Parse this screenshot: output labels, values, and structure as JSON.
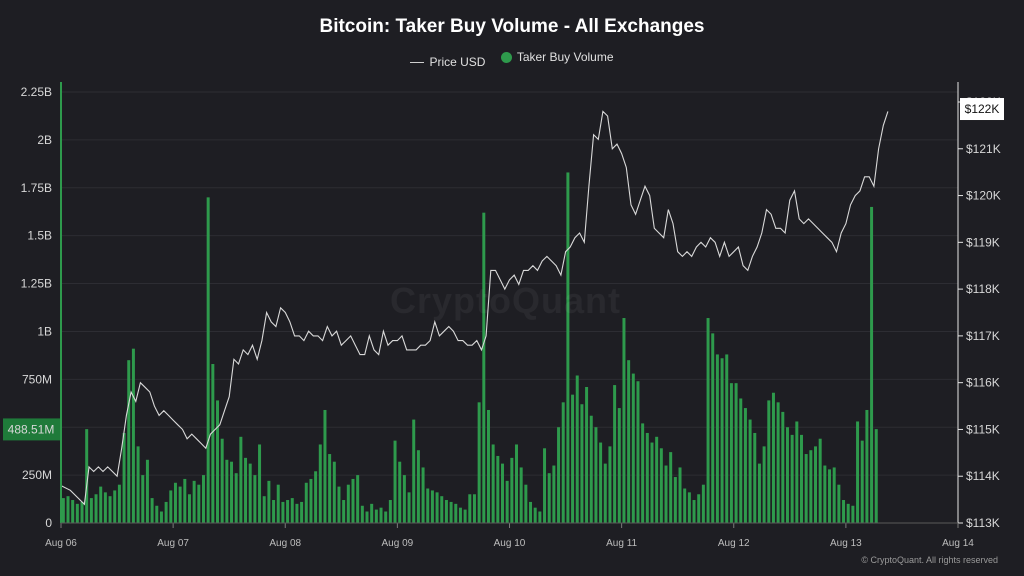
{
  "title": "Bitcoin: Taker Buy Volume - All Exchanges",
  "legend": {
    "price_label": "Price USD",
    "volume_label": "Taker Buy Volume"
  },
  "watermark": "CryptoQuant",
  "copyright": "© CryptoQuant. All rights reserved",
  "colors": {
    "background": "#1e1e23",
    "bar": "#2e9a4c",
    "bar_highlight": "#3cb35b",
    "price_line": "#d9d9d9",
    "left_axis": "#2e9a4c",
    "right_axis": "#e6e6e6"
  },
  "chart_data": {
    "type": "bar",
    "title": "Bitcoin: Taker Buy Volume - All Exchanges",
    "x_ticks": [
      "Aug 06",
      "Aug 07",
      "Aug 08",
      "Aug 09",
      "Aug 10",
      "Aug 11",
      "Aug 12",
      "Aug 13",
      "Aug 14"
    ],
    "y_left": {
      "ticks": [
        "0",
        "250M",
        "500M",
        "750M",
        "1B",
        "1.25B",
        "1.5B",
        "1.75B",
        "2B",
        "2.25B"
      ],
      "range": [
        0,
        2250000000
      ],
      "current_label": "488.51M",
      "current_value": 488510000
    },
    "y_right": {
      "ticks": [
        "$113K",
        "$114K",
        "$115K",
        "$116K",
        "$117K",
        "$118K",
        "$119K",
        "$120K",
        "$121K",
        "$122K"
      ],
      "range": [
        113000,
        122000
      ],
      "current_label": "$122K",
      "current_value": 121850
    },
    "x_range_hours": [
      0,
      192
    ],
    "series": [
      {
        "name": "Taker Buy Volume",
        "kind": "bar",
        "hour_start": 0,
        "hour_step": 1,
        "values": [
          130,
          140,
          120,
          100,
          110,
          490,
          130,
          150,
          190,
          160,
          140,
          170,
          200,
          470,
          850,
          910,
          400,
          250,
          330,
          130,
          90,
          60,
          110,
          170,
          210,
          190,
          230,
          150,
          220,
          200,
          250,
          1700,
          830,
          640,
          440,
          330,
          320,
          260,
          450,
          340,
          310,
          250,
          410,
          140,
          220,
          120,
          200,
          110,
          120,
          130,
          100,
          110,
          210,
          230,
          270,
          410,
          590,
          360,
          320,
          190,
          120,
          200,
          230,
          250,
          90,
          60,
          100,
          70,
          80,
          60,
          120,
          430,
          320,
          250,
          160,
          540,
          380,
          290,
          180,
          170,
          160,
          140,
          120,
          110,
          100,
          80,
          70,
          150,
          150,
          630,
          1620,
          590,
          410,
          350,
          310,
          220,
          340,
          410,
          290,
          200,
          110,
          80,
          60,
          390,
          260,
          300,
          500,
          630,
          1830,
          670,
          770,
          620,
          710,
          560,
          500,
          420,
          310,
          400,
          720,
          600,
          1070,
          850,
          780,
          740,
          520,
          470,
          420,
          450,
          390,
          300,
          370,
          240,
          290,
          180,
          160,
          120,
          150,
          200,
          1070,
          990,
          880,
          860,
          880,
          730,
          730,
          650,
          600,
          540,
          470,
          310,
          400,
          640,
          680,
          630,
          580,
          500,
          460,
          530,
          460,
          360,
          380,
          400,
          440,
          300,
          280,
          290,
          200,
          120,
          100,
          90,
          530,
          430,
          590,
          1650,
          490
        ],
        "unit": "millions"
      },
      {
        "name": "Price USD",
        "kind": "line",
        "points": [
          [
            0,
            113800
          ],
          [
            2,
            113700
          ],
          [
            4,
            113500
          ],
          [
            5,
            113400
          ],
          [
            6,
            114200
          ],
          [
            7,
            114100
          ],
          [
            8,
            114200
          ],
          [
            9,
            114100
          ],
          [
            10,
            114200
          ],
          [
            11,
            114100
          ],
          [
            12,
            114000
          ],
          [
            13,
            114600
          ],
          [
            14,
            115300
          ],
          [
            15,
            115800
          ],
          [
            16,
            115600
          ],
          [
            17,
            116000
          ],
          [
            18,
            115900
          ],
          [
            19,
            115800
          ],
          [
            20,
            115500
          ],
          [
            21,
            115300
          ],
          [
            22,
            115400
          ],
          [
            23,
            115300
          ],
          [
            24,
            115200
          ],
          [
            25,
            115100
          ],
          [
            26,
            115000
          ],
          [
            27,
            114800
          ],
          [
            28,
            114900
          ],
          [
            29,
            114800
          ],
          [
            30,
            114700
          ],
          [
            31,
            114600
          ],
          [
            32,
            114900
          ],
          [
            33,
            115000
          ],
          [
            34,
            115100
          ],
          [
            35,
            115400
          ],
          [
            36,
            115700
          ],
          [
            37,
            116500
          ],
          [
            38,
            116400
          ],
          [
            39,
            116700
          ],
          [
            40,
            116600
          ],
          [
            41,
            116800
          ],
          [
            42,
            116500
          ],
          [
            43,
            116900
          ],
          [
            44,
            117500
          ],
          [
            45,
            117300
          ],
          [
            46,
            117200
          ],
          [
            47,
            117600
          ],
          [
            48,
            117500
          ],
          [
            49,
            117300
          ],
          [
            50,
            117000
          ],
          [
            51,
            117000
          ],
          [
            52,
            116900
          ],
          [
            53,
            117100
          ],
          [
            54,
            117000
          ],
          [
            55,
            117000
          ],
          [
            56,
            116900
          ],
          [
            57,
            117200
          ],
          [
            58,
            117000
          ],
          [
            59,
            117100
          ],
          [
            60,
            116800
          ],
          [
            61,
            116900
          ],
          [
            62,
            117000
          ],
          [
            63,
            116800
          ],
          [
            64,
            116600
          ],
          [
            65,
            116600
          ],
          [
            66,
            117000
          ],
          [
            67,
            116700
          ],
          [
            68,
            116600
          ],
          [
            69,
            117100
          ],
          [
            70,
            116800
          ],
          [
            71,
            116900
          ],
          [
            72,
            116900
          ],
          [
            73,
            117000
          ],
          [
            74,
            116700
          ],
          [
            75,
            116700
          ],
          [
            76,
            116700
          ],
          [
            77,
            116800
          ],
          [
            78,
            116800
          ],
          [
            79,
            116900
          ],
          [
            80,
            117300
          ],
          [
            81,
            117000
          ],
          [
            82,
            117100
          ],
          [
            83,
            117200
          ],
          [
            84,
            117100
          ],
          [
            85,
            116900
          ],
          [
            86,
            116900
          ],
          [
            87,
            116800
          ],
          [
            88,
            116800
          ],
          [
            89,
            116900
          ],
          [
            90,
            116700
          ],
          [
            91,
            117000
          ],
          [
            92,
            118400
          ],
          [
            93,
            118400
          ],
          [
            94,
            118200
          ],
          [
            95,
            118000
          ],
          [
            96,
            118200
          ],
          [
            97,
            118300
          ],
          [
            98,
            118100
          ],
          [
            99,
            118400
          ],
          [
            100,
            118400
          ],
          [
            101,
            118500
          ],
          [
            102,
            118400
          ],
          [
            103,
            118600
          ],
          [
            104,
            118700
          ],
          [
            105,
            118600
          ],
          [
            106,
            118500
          ],
          [
            107,
            118300
          ],
          [
            108,
            118800
          ],
          [
            109,
            118900
          ],
          [
            110,
            119100
          ],
          [
            111,
            119200
          ],
          [
            112,
            119000
          ],
          [
            113,
            120200
          ],
          [
            114,
            121300
          ],
          [
            115,
            121200
          ],
          [
            116,
            121800
          ],
          [
            117,
            121700
          ],
          [
            118,
            121000
          ],
          [
            119,
            121100
          ],
          [
            120,
            120900
          ],
          [
            121,
            120600
          ],
          [
            122,
            119800
          ],
          [
            123,
            119600
          ],
          [
            124,
            119900
          ],
          [
            125,
            120200
          ],
          [
            126,
            120000
          ],
          [
            127,
            119300
          ],
          [
            128,
            119200
          ],
          [
            129,
            119100
          ],
          [
            130,
            119700
          ],
          [
            131,
            119400
          ],
          [
            132,
            118800
          ],
          [
            133,
            118700
          ],
          [
            134,
            118800
          ],
          [
            135,
            118700
          ],
          [
            136,
            118900
          ],
          [
            137,
            119000
          ],
          [
            138,
            118900
          ],
          [
            139,
            119100
          ],
          [
            140,
            119000
          ],
          [
            141,
            118700
          ],
          [
            142,
            119000
          ],
          [
            143,
            118700
          ],
          [
            144,
            118800
          ],
          [
            145,
            118900
          ],
          [
            146,
            118500
          ],
          [
            147,
            118400
          ],
          [
            148,
            118700
          ],
          [
            149,
            118900
          ],
          [
            150,
            119200
          ],
          [
            151,
            119700
          ],
          [
            152,
            119600
          ],
          [
            153,
            119300
          ],
          [
            154,
            119300
          ],
          [
            155,
            119200
          ],
          [
            156,
            119900
          ],
          [
            157,
            120100
          ],
          [
            158,
            119500
          ],
          [
            159,
            119400
          ],
          [
            160,
            119500
          ],
          [
            161,
            119400
          ],
          [
            162,
            119300
          ],
          [
            163,
            119200
          ],
          [
            164,
            119100
          ],
          [
            165,
            119000
          ],
          [
            166,
            118800
          ],
          [
            167,
            119200
          ],
          [
            168,
            119400
          ],
          [
            169,
            119800
          ],
          [
            170,
            120000
          ],
          [
            171,
            120100
          ],
          [
            172,
            120400
          ],
          [
            173,
            120400
          ],
          [
            174,
            120200
          ],
          [
            175,
            121000
          ],
          [
            176,
            121500
          ],
          [
            177,
            121800
          ]
        ]
      }
    ],
    "legend_position": "top-center",
    "grid": true
  }
}
